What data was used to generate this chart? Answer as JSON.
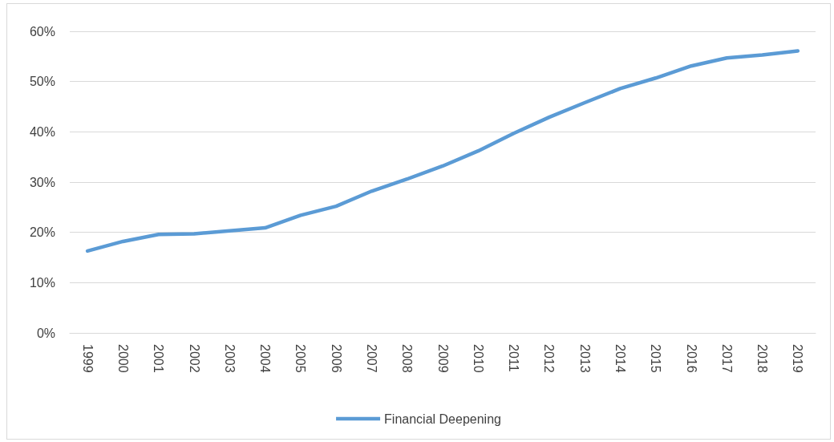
{
  "chart_data": {
    "type": "line",
    "categories": [
      "1999",
      "2000",
      "2001",
      "2002",
      "2003",
      "2004",
      "2005",
      "2006",
      "2007",
      "2008",
      "2009",
      "2010",
      "2011",
      "2012",
      "2013",
      "2014",
      "2015",
      "2016",
      "2017",
      "2018",
      "2019"
    ],
    "series": [
      {
        "name": "Financial Deepening",
        "color": "#5b9bd5",
        "values": [
          16.3,
          18.2,
          19.6,
          19.7,
          20.3,
          20.9,
          23.4,
          25.2,
          28.2,
          30.6,
          33.2,
          36.2,
          39.7,
          42.9,
          45.8,
          48.6,
          50.7,
          53.1,
          54.7,
          55.3,
          56.1
        ]
      }
    ],
    "ylim": [
      0,
      60
    ],
    "yticks": [
      {
        "value": 0,
        "label": "0%"
      },
      {
        "value": 10,
        "label": "10%"
      },
      {
        "value": 20,
        "label": "20%"
      },
      {
        "value": 30,
        "label": "30%"
      },
      {
        "value": 40,
        "label": "40%"
      },
      {
        "value": 50,
        "label": "50%"
      },
      {
        "value": 60,
        "label": "60%"
      }
    ],
    "grid": "y",
    "legend": "bottom",
    "marker": "none",
    "line_style": "solid"
  }
}
